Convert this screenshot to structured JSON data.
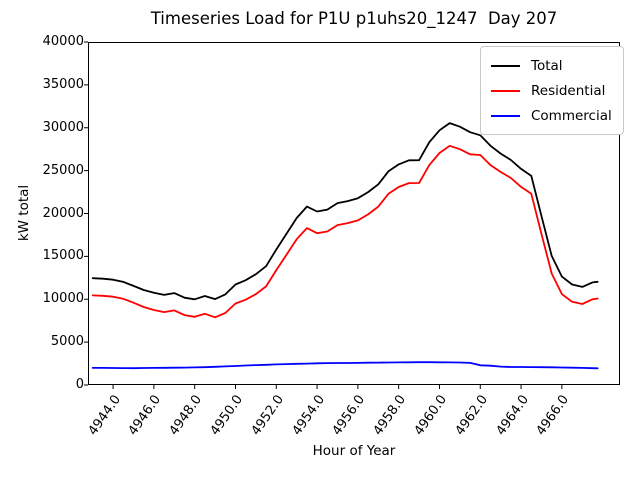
{
  "title": "Timeseries Load for P1U p1uhs20_1247  Day 207",
  "axes": {
    "xlabel": "Hour of Year",
    "ylabel": "kW total"
  },
  "legend": [
    {
      "label": "Total",
      "color": "#000000"
    },
    {
      "label": "Residential",
      "color": "#ff0000"
    },
    {
      "label": "Commercial",
      "color": "#0000ff"
    }
  ],
  "chart_data": {
    "type": "line",
    "title": "Timeseries Load for P1U p1uhs20_1247  Day 207",
    "xlabel": "Hour of Year",
    "ylabel": "kW total",
    "xlim": [
      4942.77,
      4968.85
    ],
    "ylim": [
      0,
      40000
    ],
    "grid": false,
    "legend_position": "upper right",
    "x_tick_labels": [
      "4944.0",
      "4946.0",
      "4948.0",
      "4950.0",
      "4952.0",
      "4954.0",
      "4956.0",
      "4958.0",
      "4960.0",
      "4962.0",
      "4964.0",
      "4966.0"
    ],
    "y_tick_labels": [
      "0",
      "5000",
      "10000",
      "15000",
      "20000",
      "25000",
      "30000",
      "35000",
      "40000"
    ],
    "x": [
      4943.0,
      4943.5,
      4944.0,
      4944.5,
      4945.0,
      4945.5,
      4946.0,
      4946.5,
      4947.0,
      4947.5,
      4948.0,
      4948.5,
      4949.0,
      4949.5,
      4950.0,
      4950.5,
      4951.0,
      4951.5,
      4952.0,
      4952.5,
      4953.0,
      4953.5,
      4954.0,
      4954.5,
      4955.0,
      4955.5,
      4956.0,
      4956.5,
      4957.0,
      4957.5,
      4958.0,
      4958.5,
      4959.0,
      4959.5,
      4960.0,
      4960.5,
      4961.0,
      4961.5,
      4962.0,
      4962.5,
      4963.0,
      4963.5,
      4964.0,
      4964.5,
      4965.0,
      4965.5,
      4966.0,
      4966.5,
      4967.0,
      4967.5,
      4967.75
    ],
    "series": [
      {
        "name": "Total",
        "color": "#000000",
        "values": [
          12450,
          12400,
          12280,
          12020,
          11560,
          11080,
          10750,
          10510,
          10720,
          10180,
          10000,
          10380,
          10020,
          10570,
          11720,
          12220,
          12920,
          13860,
          15800,
          17640,
          19470,
          20800,
          20230,
          20450,
          21210,
          21450,
          21780,
          22500,
          23410,
          24920,
          25730,
          26200,
          26220,
          28310,
          29700,
          30540,
          30120,
          29480,
          29120,
          27900,
          26990,
          26240,
          25200,
          24390,
          19680,
          15060,
          12640,
          11720,
          11440,
          11960,
          12040
        ]
      },
      {
        "name": "Residential",
        "color": "#ff0000",
        "values": [
          10450,
          10400,
          10300,
          10050,
          9600,
          9100,
          8750,
          8500,
          8700,
          8150,
          7950,
          8300,
          7900,
          8400,
          9500,
          9950,
          10600,
          11500,
          13400,
          15200,
          17000,
          18300,
          17700,
          17900,
          18650,
          18880,
          19200,
          19900,
          20800,
          22300,
          23090,
          23550,
          23560,
          25650,
          27050,
          27900,
          27500,
          26900,
          26820,
          25650,
          24840,
          24140,
          23100,
          22300,
          17600,
          13000,
          10600,
          9700,
          9450,
          10000,
          10090
        ]
      },
      {
        "name": "Commercial",
        "color": "#0000ff",
        "values": [
          2000,
          2000,
          1980,
          1970,
          1960,
          1980,
          2000,
          2010,
          2020,
          2030,
          2050,
          2080,
          2120,
          2170,
          2220,
          2270,
          2320,
          2360,
          2400,
          2440,
          2470,
          2500,
          2530,
          2550,
          2560,
          2570,
          2580,
          2600,
          2610,
          2620,
          2640,
          2650,
          2660,
          2660,
          2650,
          2640,
          2620,
          2580,
          2300,
          2250,
          2150,
          2100,
          2100,
          2090,
          2080,
          2060,
          2040,
          2020,
          1990,
          1960,
          1950
        ]
      }
    ]
  }
}
